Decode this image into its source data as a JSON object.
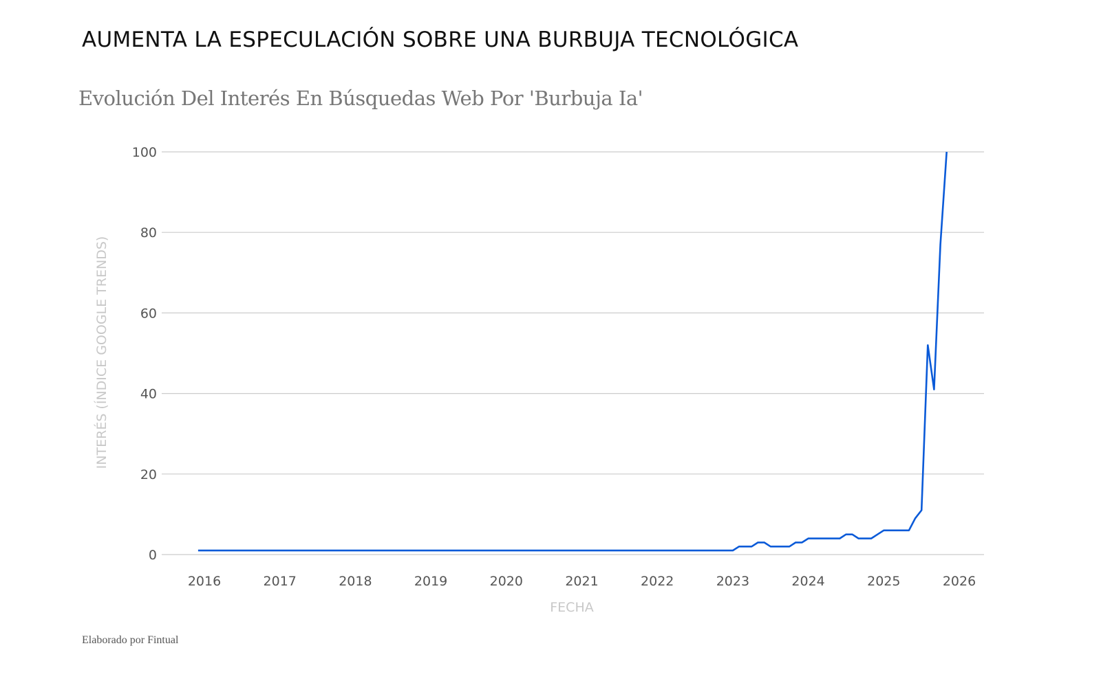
{
  "header": {
    "title": "AUMENTA LA ESPECULACIÓN SOBRE UNA BURBUJA TECNOLÓGICA",
    "subtitle": "Evolución Del Interés En Búsquedas Web Por 'Burbuja Ia'"
  },
  "footer": {
    "credit": "Elaborado por Fintual"
  },
  "colors": {
    "line": "#0a5ad8",
    "grid": "#cccccc"
  },
  "chart_data": {
    "type": "line",
    "title": "Evolución Del Interés En Búsquedas Web Por 'Burbuja Ia'",
    "xlabel": "FECHA",
    "ylabel": "INTERÉS (ÍNDICE GOOGLE TRENDS)",
    "ylim": [
      0,
      100
    ],
    "xlim": [
      "2015-12",
      "2025-11"
    ],
    "yticks": [
      "0",
      "20",
      "40",
      "60",
      "80",
      "100"
    ],
    "xticks": [
      "2016",
      "2017",
      "2018",
      "2019",
      "2020",
      "2021",
      "2022",
      "2023",
      "2024",
      "2025",
      "2026"
    ],
    "grid": true,
    "legend": "none",
    "frequency": "monthly",
    "start": "2015-12",
    "series": [
      {
        "name": "burbuja ia",
        "values": [
          1,
          1,
          1,
          1,
          1,
          1,
          1,
          1,
          1,
          1,
          1,
          1,
          1,
          1,
          1,
          1,
          1,
          1,
          1,
          1,
          1,
          1,
          1,
          1,
          1,
          1,
          1,
          1,
          1,
          1,
          1,
          1,
          1,
          1,
          1,
          1,
          1,
          1,
          1,
          1,
          1,
          1,
          1,
          1,
          1,
          1,
          1,
          1,
          1,
          1,
          1,
          1,
          1,
          1,
          1,
          1,
          1,
          1,
          1,
          1,
          1,
          1,
          1,
          1,
          1,
          1,
          1,
          1,
          1,
          1,
          1,
          1,
          1,
          1,
          1,
          1,
          1,
          1,
          1,
          1,
          1,
          1,
          1,
          1,
          1,
          1,
          2,
          2,
          2,
          3,
          3,
          2,
          2,
          2,
          2,
          3,
          3,
          4,
          4,
          4,
          4,
          4,
          4,
          5,
          5,
          4,
          4,
          4,
          5,
          6,
          6,
          6,
          6,
          6,
          9,
          11,
          52,
          41,
          77,
          100
        ]
      }
    ]
  }
}
